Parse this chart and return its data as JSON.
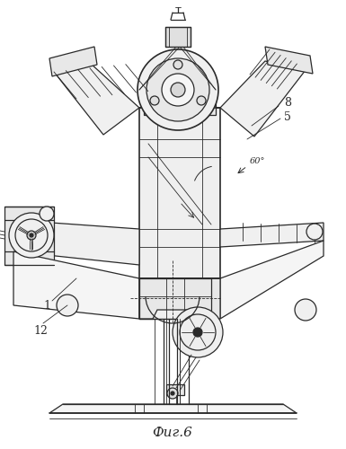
{
  "title": "Фиг.6",
  "bg_color": "#ffffff",
  "line_color": "#2a2a2a",
  "figsize": [
    3.85,
    5.0
  ],
  "dpi": 100
}
